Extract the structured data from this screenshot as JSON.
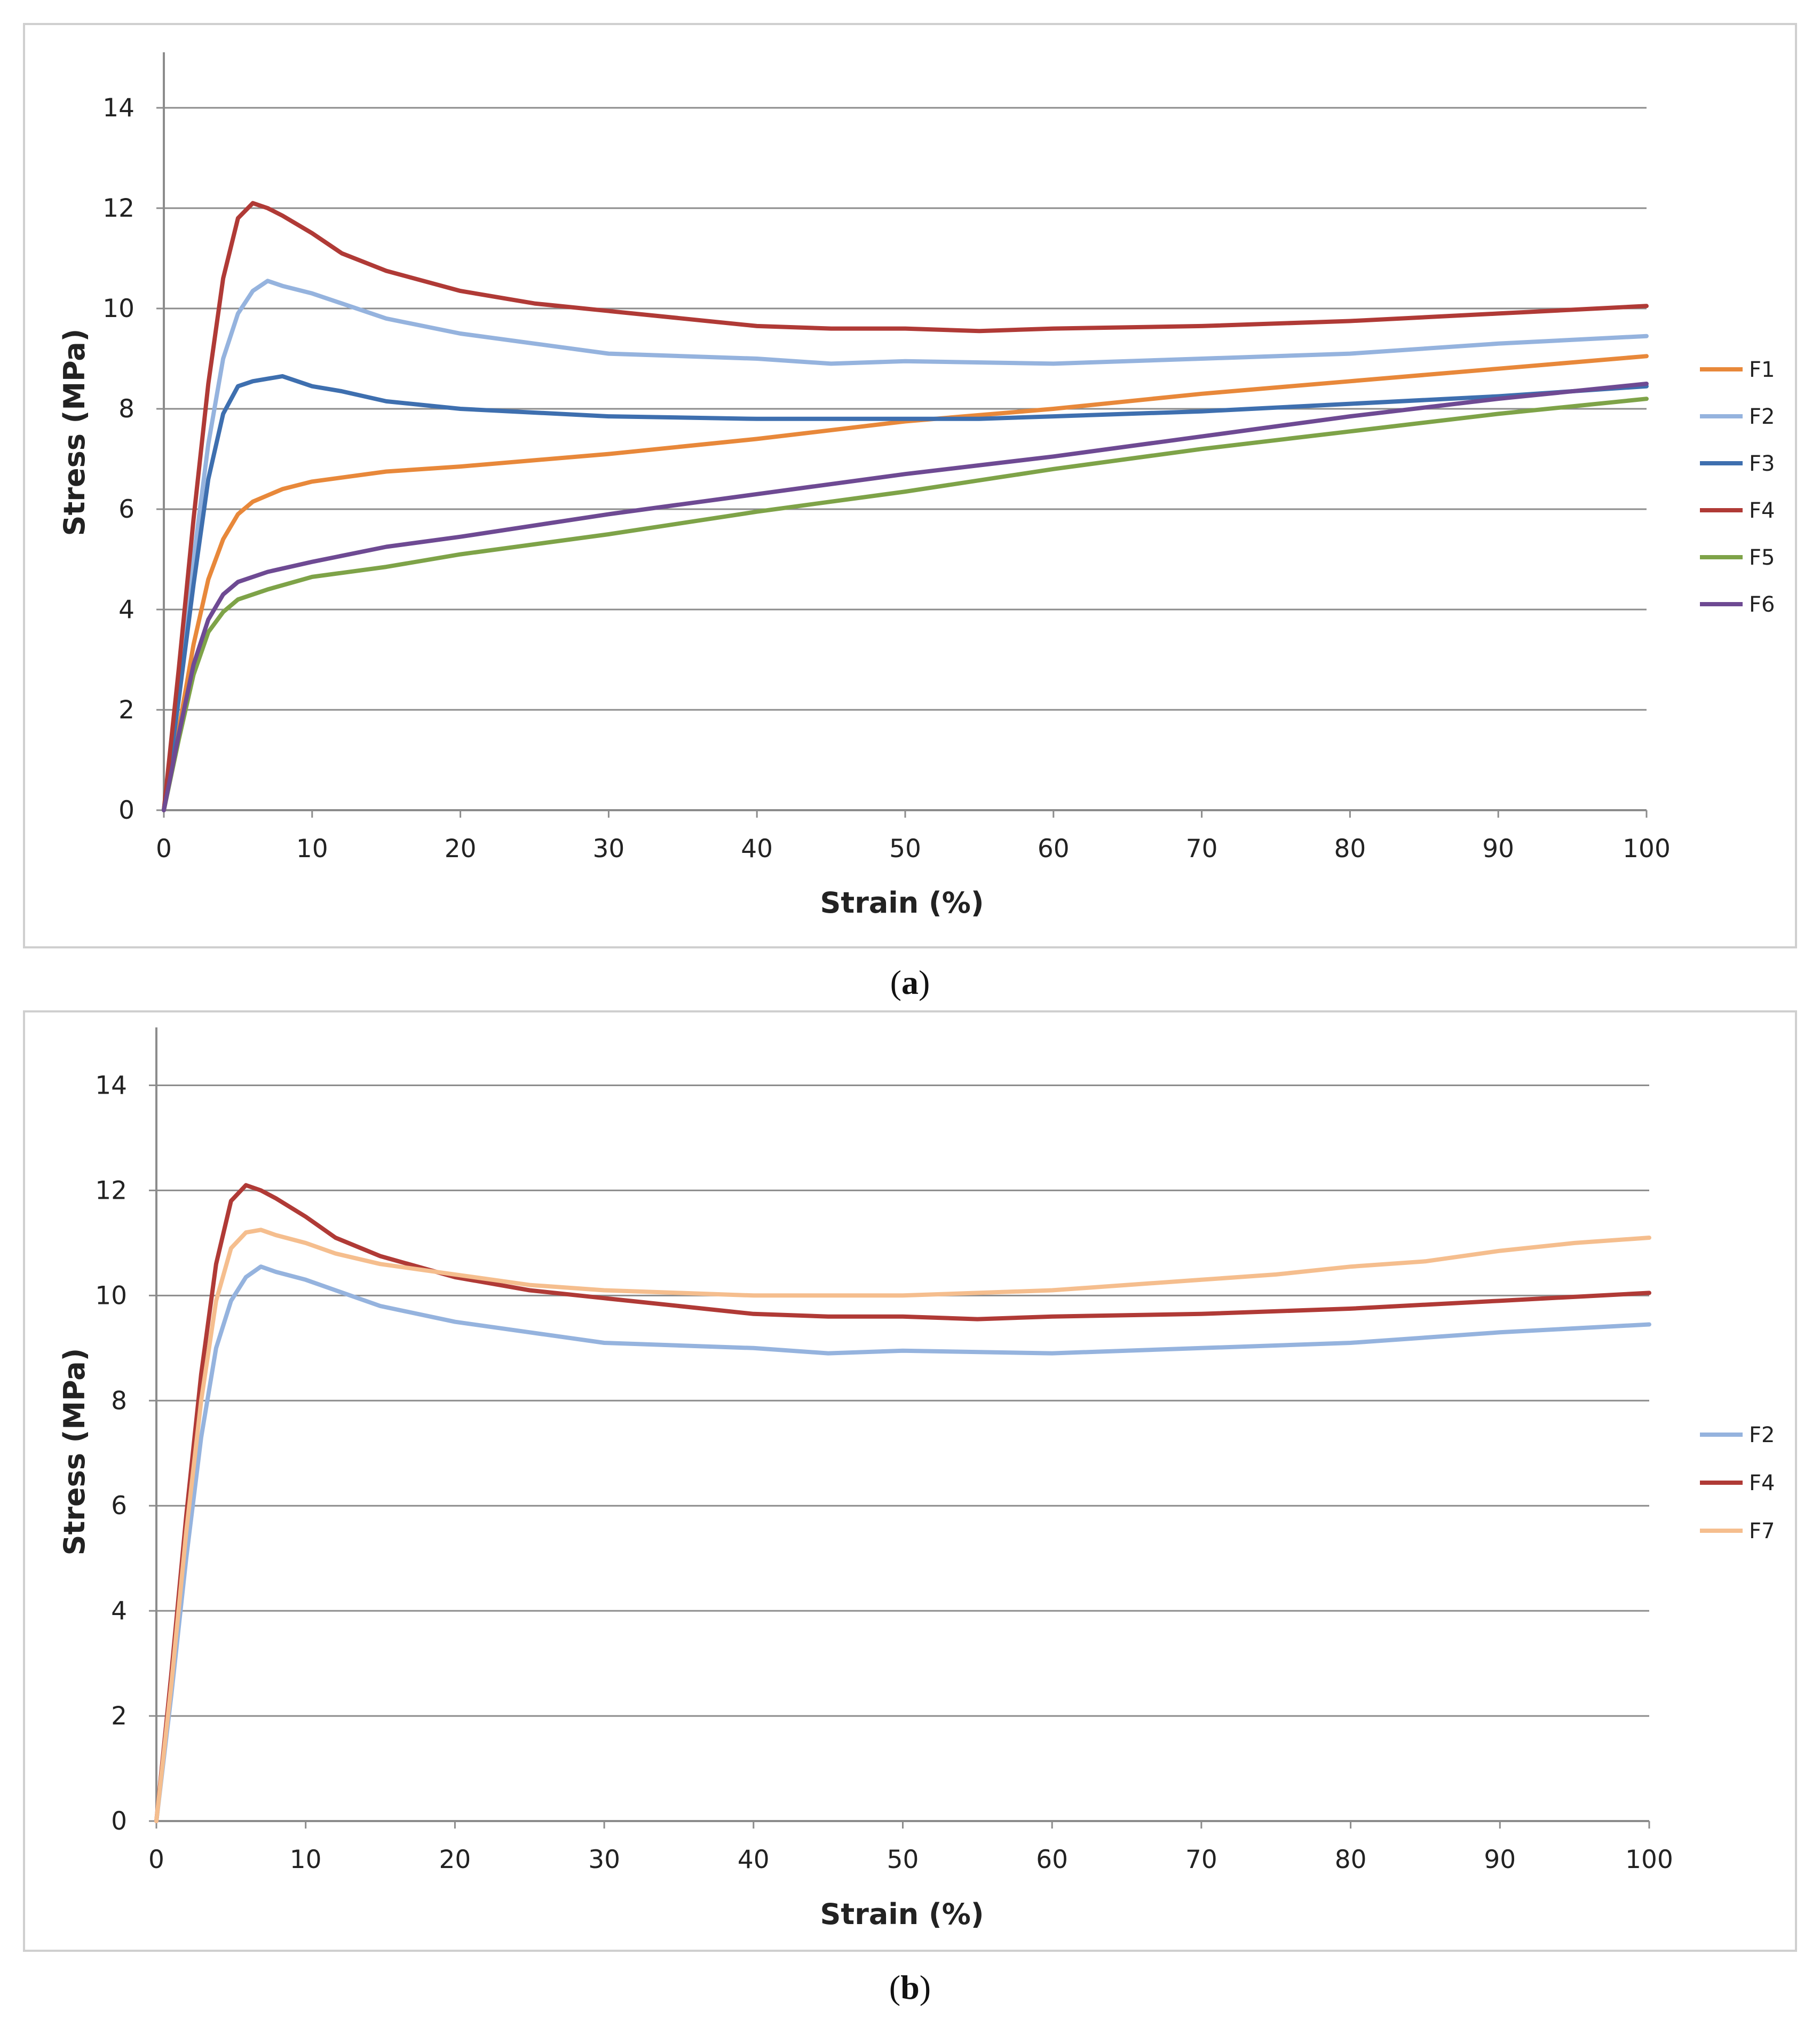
{
  "chart_data": [
    {
      "type": "line",
      "caption": {
        "open": "(",
        "letter": "a",
        "close": ")"
      },
      "xlabel": "Strain (%)",
      "ylabel": "Stress (MPa)",
      "xlim": [
        0,
        100
      ],
      "ylim": [
        0,
        15
      ],
      "xticks": [
        0,
        10,
        20,
        30,
        40,
        50,
        60,
        70,
        80,
        90,
        100
      ],
      "yticks": [
        0,
        2,
        4,
        6,
        8,
        10,
        12,
        14
      ],
      "grid": true,
      "legend_position": "right",
      "series": [
        {
          "name": "F1",
          "color": "#E8883A",
          "points": [
            [
              0,
              0
            ],
            [
              1,
              1.6
            ],
            [
              2,
              3.3
            ],
            [
              3,
              4.6
            ],
            [
              4,
              5.4
            ],
            [
              5,
              5.9
            ],
            [
              6,
              6.15
            ],
            [
              8,
              6.4
            ],
            [
              10,
              6.55
            ],
            [
              15,
              6.75
            ],
            [
              20,
              6.85
            ],
            [
              30,
              7.1
            ],
            [
              40,
              7.4
            ],
            [
              50,
              7.75
            ],
            [
              60,
              8.0
            ],
            [
              70,
              8.3
            ],
            [
              80,
              8.55
            ],
            [
              90,
              8.8
            ],
            [
              100,
              9.05
            ]
          ]
        },
        {
          "name": "F2",
          "color": "#95B3DE",
          "points": [
            [
              0,
              0
            ],
            [
              1,
              2.4
            ],
            [
              2,
              5.0
            ],
            [
              3,
              7.3
            ],
            [
              4,
              9.0
            ],
            [
              5,
              9.9
            ],
            [
              6,
              10.35
            ],
            [
              7,
              10.55
            ],
            [
              8,
              10.45
            ],
            [
              10,
              10.3
            ],
            [
              12,
              10.1
            ],
            [
              15,
              9.8
            ],
            [
              20,
              9.5
            ],
            [
              25,
              9.3
            ],
            [
              30,
              9.1
            ],
            [
              40,
              9.0
            ],
            [
              45,
              8.9
            ],
            [
              50,
              8.95
            ],
            [
              60,
              8.9
            ],
            [
              70,
              9.0
            ],
            [
              80,
              9.1
            ],
            [
              90,
              9.3
            ],
            [
              100,
              9.45
            ]
          ]
        },
        {
          "name": "F3",
          "color": "#3E6FAF",
          "points": [
            [
              0,
              0
            ],
            [
              1,
              2.2
            ],
            [
              2,
              4.5
            ],
            [
              3,
              6.6
            ],
            [
              4,
              7.9
            ],
            [
              5,
              8.45
            ],
            [
              6,
              8.55
            ],
            [
              7,
              8.6
            ],
            [
              8,
              8.65
            ],
            [
              10,
              8.45
            ],
            [
              12,
              8.35
            ],
            [
              15,
              8.15
            ],
            [
              20,
              8.0
            ],
            [
              30,
              7.85
            ],
            [
              40,
              7.8
            ],
            [
              50,
              7.8
            ],
            [
              55,
              7.8
            ],
            [
              60,
              7.85
            ],
            [
              70,
              7.95
            ],
            [
              80,
              8.1
            ],
            [
              90,
              8.25
            ],
            [
              100,
              8.45
            ]
          ]
        },
        {
          "name": "F4",
          "color": "#B03A36",
          "points": [
            [
              0,
              0
            ],
            [
              1,
              2.8
            ],
            [
              2,
              5.8
            ],
            [
              3,
              8.5
            ],
            [
              4,
              10.6
            ],
            [
              5,
              11.8
            ],
            [
              6,
              12.1
            ],
            [
              7,
              12.0
            ],
            [
              8,
              11.85
            ],
            [
              10,
              11.5
            ],
            [
              12,
              11.1
            ],
            [
              15,
              10.75
            ],
            [
              20,
              10.35
            ],
            [
              25,
              10.1
            ],
            [
              30,
              9.95
            ],
            [
              35,
              9.8
            ],
            [
              40,
              9.65
            ],
            [
              45,
              9.6
            ],
            [
              50,
              9.6
            ],
            [
              55,
              9.55
            ],
            [
              60,
              9.6
            ],
            [
              70,
              9.65
            ],
            [
              80,
              9.75
            ],
            [
              90,
              9.9
            ],
            [
              100,
              10.05
            ]
          ]
        },
        {
          "name": "F5",
          "color": "#7EA348",
          "points": [
            [
              0,
              0
            ],
            [
              1,
              1.4
            ],
            [
              2,
              2.7
            ],
            [
              3,
              3.55
            ],
            [
              4,
              3.95
            ],
            [
              5,
              4.2
            ],
            [
              7,
              4.4
            ],
            [
              10,
              4.65
            ],
            [
              15,
              4.85
            ],
            [
              20,
              5.1
            ],
            [
              30,
              5.5
            ],
            [
              40,
              5.95
            ],
            [
              50,
              6.35
            ],
            [
              60,
              6.8
            ],
            [
              70,
              7.2
            ],
            [
              80,
              7.55
            ],
            [
              90,
              7.9
            ],
            [
              100,
              8.2
            ]
          ]
        },
        {
          "name": "F6",
          "color": "#6E4A93",
          "points": [
            [
              0,
              0
            ],
            [
              1,
              1.5
            ],
            [
              2,
              2.9
            ],
            [
              3,
              3.8
            ],
            [
              4,
              4.3
            ],
            [
              5,
              4.55
            ],
            [
              7,
              4.75
            ],
            [
              10,
              4.95
            ],
            [
              15,
              5.25
            ],
            [
              20,
              5.45
            ],
            [
              30,
              5.9
            ],
            [
              40,
              6.3
            ],
            [
              50,
              6.7
            ],
            [
              60,
              7.05
            ],
            [
              70,
              7.45
            ],
            [
              80,
              7.85
            ],
            [
              90,
              8.2
            ],
            [
              100,
              8.5
            ]
          ]
        }
      ]
    },
    {
      "type": "line",
      "caption": {
        "open": "(",
        "letter": "b",
        "close": ")"
      },
      "xlabel": "Strain (%)",
      "ylabel": "Stress (MPa)",
      "xlim": [
        0,
        100
      ],
      "ylim": [
        0,
        15
      ],
      "xticks": [
        0,
        10,
        20,
        30,
        40,
        50,
        60,
        70,
        80,
        90,
        100
      ],
      "yticks": [
        0,
        2,
        4,
        6,
        8,
        10,
        12,
        14
      ],
      "grid": true,
      "legend_position": "right",
      "series": [
        {
          "name": "F2",
          "color": "#95B3DE",
          "points": [
            [
              0,
              0
            ],
            [
              1,
              2.4
            ],
            [
              2,
              5.0
            ],
            [
              3,
              7.3
            ],
            [
              4,
              9.0
            ],
            [
              5,
              9.9
            ],
            [
              6,
              10.35
            ],
            [
              7,
              10.55
            ],
            [
              8,
              10.45
            ],
            [
              10,
              10.3
            ],
            [
              12,
              10.1
            ],
            [
              15,
              9.8
            ],
            [
              20,
              9.5
            ],
            [
              25,
              9.3
            ],
            [
              30,
              9.1
            ],
            [
              40,
              9.0
            ],
            [
              45,
              8.9
            ],
            [
              50,
              8.95
            ],
            [
              60,
              8.9
            ],
            [
              70,
              9.0
            ],
            [
              80,
              9.1
            ],
            [
              90,
              9.3
            ],
            [
              100,
              9.45
            ]
          ]
        },
        {
          "name": "F4",
          "color": "#B03A36",
          "points": [
            [
              0,
              0
            ],
            [
              1,
              2.8
            ],
            [
              2,
              5.8
            ],
            [
              3,
              8.5
            ],
            [
              4,
              10.6
            ],
            [
              5,
              11.8
            ],
            [
              6,
              12.1
            ],
            [
              7,
              12.0
            ],
            [
              8,
              11.85
            ],
            [
              10,
              11.5
            ],
            [
              12,
              11.1
            ],
            [
              15,
              10.75
            ],
            [
              20,
              10.35
            ],
            [
              25,
              10.1
            ],
            [
              30,
              9.95
            ],
            [
              35,
              9.8
            ],
            [
              40,
              9.65
            ],
            [
              45,
              9.6
            ],
            [
              50,
              9.6
            ],
            [
              55,
              9.55
            ],
            [
              60,
              9.6
            ],
            [
              70,
              9.65
            ],
            [
              80,
              9.75
            ],
            [
              90,
              9.9
            ],
            [
              100,
              10.05
            ]
          ]
        },
        {
          "name": "F7",
          "color": "#F5BE8E",
          "points": [
            [
              0,
              0
            ],
            [
              1,
              2.6
            ],
            [
              2,
              5.5
            ],
            [
              3,
              8.0
            ],
            [
              4,
              9.9
            ],
            [
              5,
              10.9
            ],
            [
              6,
              11.2
            ],
            [
              7,
              11.25
            ],
            [
              8,
              11.15
            ],
            [
              10,
              11.0
            ],
            [
              12,
              10.8
            ],
            [
              15,
              10.6
            ],
            [
              20,
              10.4
            ],
            [
              25,
              10.2
            ],
            [
              30,
              10.1
            ],
            [
              35,
              10.05
            ],
            [
              40,
              10.0
            ],
            [
              45,
              10.0
            ],
            [
              50,
              10.0
            ],
            [
              55,
              10.05
            ],
            [
              60,
              10.1
            ],
            [
              65,
              10.2
            ],
            [
              70,
              10.3
            ],
            [
              75,
              10.4
            ],
            [
              80,
              10.55
            ],
            [
              85,
              10.65
            ],
            [
              90,
              10.85
            ],
            [
              95,
              11.0
            ],
            [
              100,
              11.1
            ]
          ]
        }
      ]
    }
  ]
}
